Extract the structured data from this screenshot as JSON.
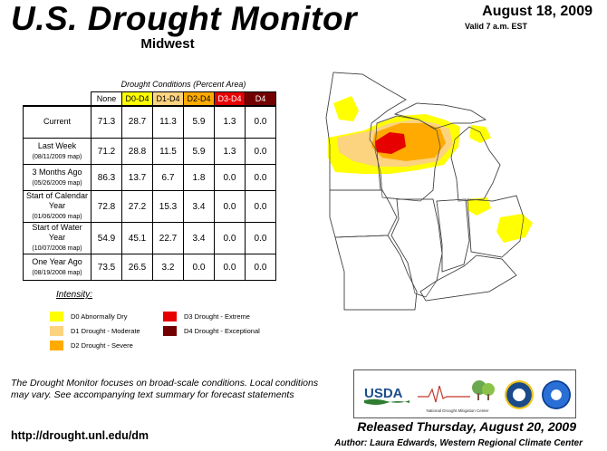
{
  "header": {
    "title": "U.S. Drought Monitor",
    "region": "Midwest",
    "date": "August 18, 2009",
    "valid": "Valid 7 a.m. EST"
  },
  "table": {
    "caption": "Drought Conditions (Percent Area)",
    "columns": [
      {
        "label": "None",
        "bg": "#ffffff",
        "fg": "#000000"
      },
      {
        "label": "D0-D4",
        "bg": "#ffff00",
        "fg": "#000000"
      },
      {
        "label": "D1-D4",
        "bg": "#fcd37f",
        "fg": "#000000"
      },
      {
        "label": "D2-D4",
        "bg": "#ffaa00",
        "fg": "#000000"
      },
      {
        "label": "D3-D4",
        "bg": "#e60000",
        "fg": "#ffffff"
      },
      {
        "label": "D4",
        "bg": "#730000",
        "fg": "#ffffff"
      }
    ],
    "rows": [
      {
        "label": "Current",
        "sub": "",
        "values": [
          "71.3",
          "28.7",
          "11.3",
          "5.9",
          "1.3",
          "0.0"
        ]
      },
      {
        "label": "Last Week",
        "sub": "(08/11/2009 map)",
        "values": [
          "71.2",
          "28.8",
          "11.5",
          "5.9",
          "1.3",
          "0.0"
        ]
      },
      {
        "label": "3 Months Ago",
        "sub": "(05/26/2009 map)",
        "values": [
          "86.3",
          "13.7",
          "6.7",
          "1.8",
          "0.0",
          "0.0"
        ]
      },
      {
        "label": "Start of Calendar Year",
        "sub": "(01/06/2009 map)",
        "values": [
          "72.8",
          "27.2",
          "15.3",
          "3.4",
          "0.0",
          "0.0"
        ]
      },
      {
        "label": "Start of Water Year",
        "sub": "(10/07/2008 map)",
        "values": [
          "54.9",
          "45.1",
          "22.7",
          "3.4",
          "0.0",
          "0.0"
        ]
      },
      {
        "label": "One Year Ago",
        "sub": "(08/19/2008 map)",
        "values": [
          "73.5",
          "26.5",
          "3.2",
          "0.0",
          "0.0",
          "0.0"
        ]
      }
    ]
  },
  "legend": {
    "title": "Intensity:",
    "items": [
      {
        "label": "D0 Abnormally Dry",
        "color": "#ffff00"
      },
      {
        "label": "D1 Drought - Moderate",
        "color": "#fcd37f"
      },
      {
        "label": "D2 Drought - Severe",
        "color": "#ffaa00"
      },
      {
        "label": "D3 Drought - Extreme",
        "color": "#e60000"
      },
      {
        "label": "D4 Drought - Exceptional",
        "color": "#730000"
      }
    ]
  },
  "footer": {
    "note": "The Drought Monitor focuses on broad-scale conditions. Local conditions may vary. See accompanying text summary for forecast statements",
    "url": "http://drought.unl.edu/dm",
    "released": "Released Thursday, August 20, 2009",
    "author": "Author: Laura Edwards, Western Regional Climate Center",
    "logos": {
      "usda": "USDA",
      "ndmc": "National Drought Mitigation Center"
    }
  }
}
